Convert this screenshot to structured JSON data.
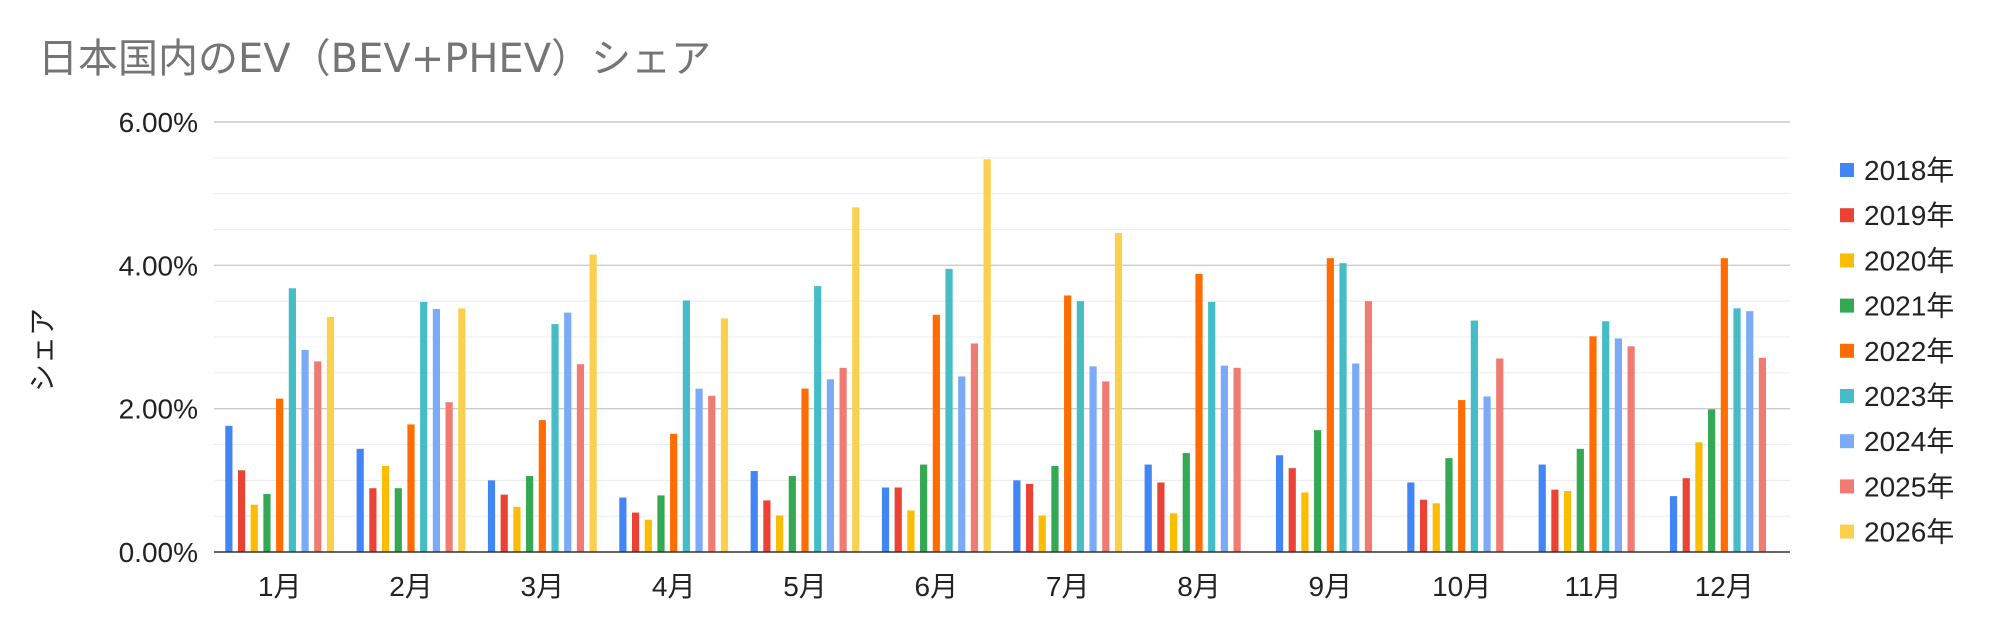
{
  "chart_data": {
    "type": "bar",
    "title": "日本国内のEV（BEV+PHEV）シェア",
    "xlabel": "",
    "ylabel": "シェア",
    "ylim": [
      0,
      0.06
    ],
    "yticks": [
      0.0,
      0.02,
      0.04,
      0.06
    ],
    "ytick_labels": [
      "0.00%",
      "2.00%",
      "4.00%",
      "6.00%"
    ],
    "y_format": "percent",
    "grid": true,
    "legend_position": "right",
    "categories": [
      "1月",
      "2月",
      "3月",
      "4月",
      "5月",
      "6月",
      "7月",
      "8月",
      "9月",
      "10月",
      "11月",
      "12月"
    ],
    "series": [
      {
        "name": "2018年",
        "color": "#4285F4",
        "values": [
          0.0176,
          0.0144,
          0.01,
          0.0076,
          0.0113,
          0.009,
          0.01,
          0.0122,
          0.0135,
          0.0097,
          0.0122,
          0.0078
        ]
      },
      {
        "name": "2019年",
        "color": "#EA4335",
        "values": [
          0.0114,
          0.0089,
          0.008,
          0.0055,
          0.0072,
          0.009,
          0.0095,
          0.0097,
          0.0117,
          0.0073,
          0.0087,
          0.0103
        ]
      },
      {
        "name": "2020年",
        "color": "#FBBC04",
        "values": [
          0.0066,
          0.012,
          0.0063,
          0.0045,
          0.0051,
          0.0058,
          0.0051,
          0.0054,
          0.0083,
          0.0068,
          0.0085,
          0.0153
        ]
      },
      {
        "name": "2021年",
        "color": "#34A853",
        "values": [
          0.0081,
          0.0089,
          0.0106,
          0.0079,
          0.0106,
          0.0122,
          0.012,
          0.0138,
          0.017,
          0.0131,
          0.0144,
          0.0199
        ]
      },
      {
        "name": "2022年",
        "color": "#FF6D01",
        "values": [
          0.0214,
          0.0178,
          0.0184,
          0.0165,
          0.0228,
          0.0331,
          0.0358,
          0.0388,
          0.041,
          0.0212,
          0.0301,
          0.041
        ]
      },
      {
        "name": "2023年",
        "color": "#46BDC6",
        "values": [
          0.0368,
          0.0349,
          0.0318,
          0.0351,
          0.0371,
          0.0395,
          0.035,
          0.0349,
          0.0403,
          0.0323,
          0.0322,
          0.034
        ]
      },
      {
        "name": "2024年",
        "color": "#7BAAF7",
        "values": [
          0.0282,
          0.0339,
          0.0334,
          0.0228,
          0.0241,
          0.0245,
          0.0259,
          0.026,
          0.0263,
          0.0217,
          0.0298,
          0.0336
        ]
      },
      {
        "name": "2025年",
        "color": "#F07B72",
        "values": [
          0.0266,
          0.0209,
          0.0262,
          0.0218,
          0.0257,
          0.0291,
          0.0238,
          0.0257,
          0.035,
          0.027,
          0.0287,
          0.0271
        ]
      },
      {
        "name": "2026年",
        "color": "#FCD04F",
        "values": [
          0.0328,
          0.034,
          0.0415,
          0.0326,
          0.0481,
          0.0548,
          0.0445,
          null,
          null,
          null,
          null,
          null
        ]
      }
    ]
  }
}
